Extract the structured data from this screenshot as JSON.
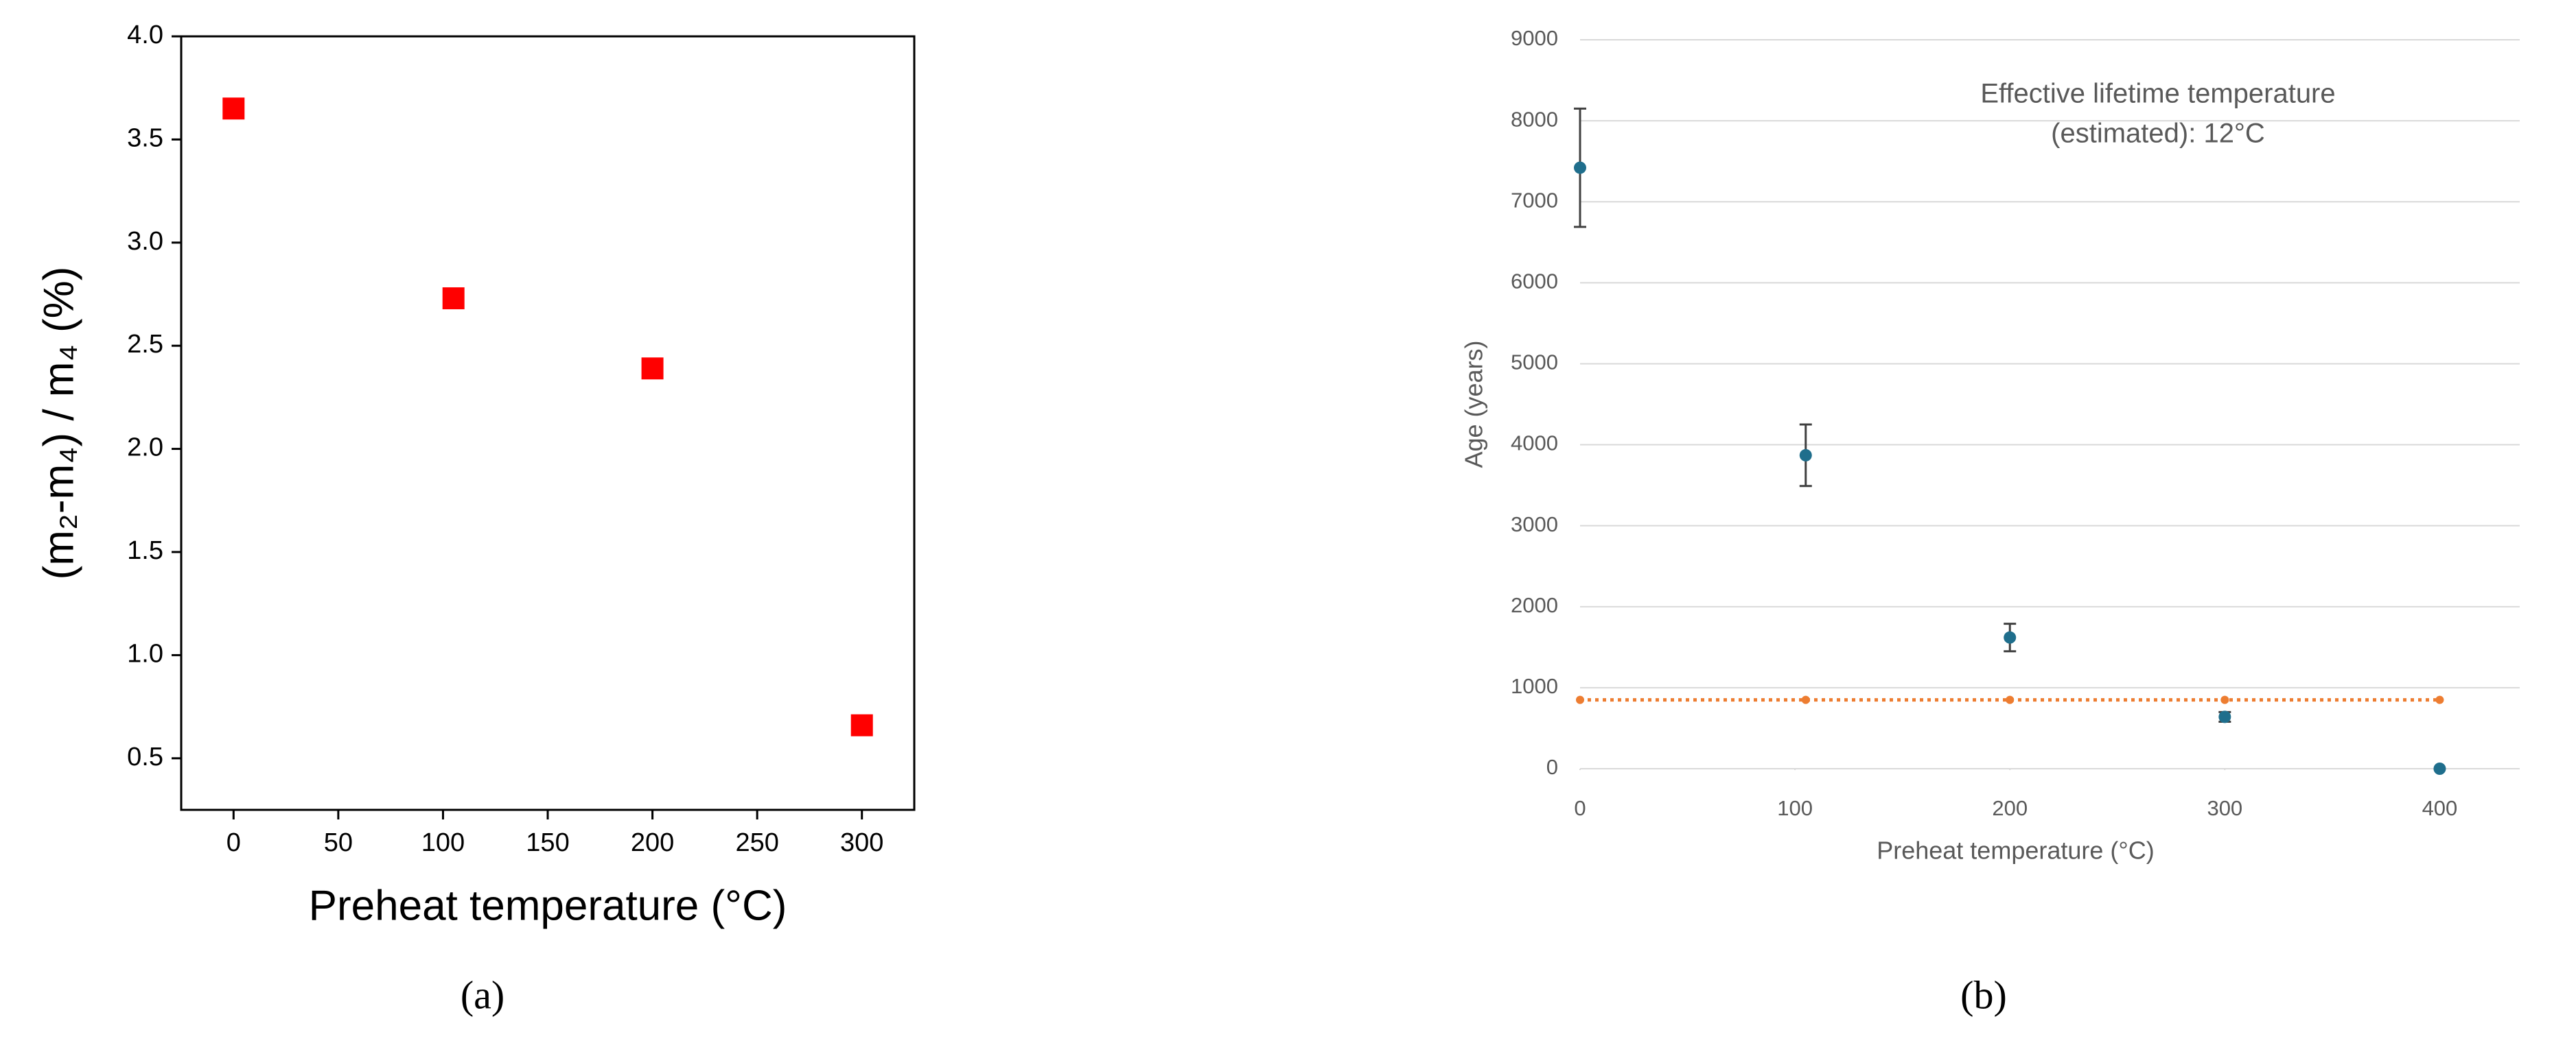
{
  "chart_data": [
    {
      "type": "scatter",
      "caption": "(a)",
      "xlabel": "Preheat temperature (°C)",
      "ylabel": "(m₂-m₄) / m₄ (%)",
      "xlim": [
        -25,
        325
      ],
      "ylim": [
        0.25,
        4.0
      ],
      "xticks": [
        0,
        50,
        100,
        150,
        200,
        250,
        300
      ],
      "yticks": [
        0.5,
        {
          "value": 1.0,
          "label": "1.0"
        },
        1.5,
        {
          "value": 2.0,
          "label": "2.0"
        },
        2.5,
        {
          "value": 3.0,
          "label": "3.0"
        },
        3.5,
        {
          "value": 4.0,
          "label": "4.0"
        }
      ],
      "grid": false,
      "frame": true,
      "series": [
        {
          "color": "#ff0000",
          "marker": "square",
          "x": [
            0,
            105,
            200,
            300
          ],
          "values": [
            3.65,
            2.73,
            2.39,
            0.66
          ]
        }
      ]
    },
    {
      "type": "scatter",
      "caption": "(b)",
      "xlabel": "Preheat temperature (°C)",
      "ylabel": "Age (years)",
      "annotation": [
        "Effective lifetime temperature",
        "(estimated): 12°C"
      ],
      "xlim": [
        0,
        450
      ],
      "ylim": [
        0,
        9000
      ],
      "xticks": [
        0,
        100,
        200,
        300,
        400
      ],
      "yticks": [
        0,
        1000,
        2000,
        3000,
        4000,
        5000,
        6000,
        7000,
        8000,
        9000
      ],
      "grid": true,
      "frame": false,
      "series": [
        {
          "color": "#1f6e8c",
          "marker": "circle",
          "x": [
            0,
            105,
            200,
            300,
            400
          ],
          "values": [
            7420,
            3870,
            1620,
            640,
            0
          ],
          "errors": [
            730,
            380,
            170,
            60,
            0
          ]
        },
        {
          "color": "#ed7d31",
          "marker": "circle",
          "line": "dotted",
          "x": [
            0,
            105,
            200,
            300,
            400
          ],
          "values": [
            850,
            850,
            850,
            850,
            850
          ]
        }
      ]
    }
  ]
}
